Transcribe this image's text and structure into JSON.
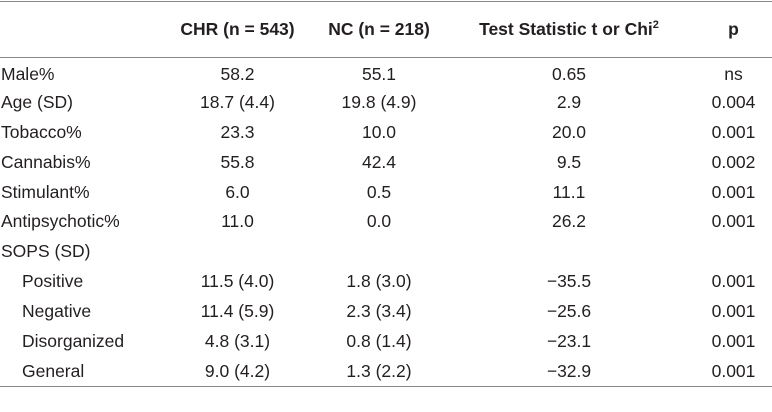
{
  "table": {
    "header": [
      "CHR (n = 543)",
      "NC (n = 218)",
      {
        "text": "Test Statistic t or Chi",
        "superscript": "2"
      },
      "p"
    ],
    "rows": [
      [
        "Male%",
        "58.2",
        "55.1",
        "0.65",
        "ns"
      ],
      [
        "Age (SD)",
        "18.7 (4.4)",
        "19.8 (4.9)",
        "2.9",
        "0.004"
      ],
      [
        "Tobacco%",
        "23.3",
        "10.0",
        "20.0",
        "0.001"
      ],
      [
        "Cannabis%",
        "55.8",
        "42.4",
        "9.5",
        "0.002"
      ],
      [
        "Stimulant%",
        "6.0",
        "0.5",
        "11.1",
        "0.001"
      ],
      [
        "Antipsychotic%",
        "11.0",
        "0.0",
        "26.2",
        "0.001"
      ]
    ],
    "group": {
      "label": "SOPS (SD)",
      "rows": [
        [
          "Positive",
          "11.5 (4.0)",
          "1.8 (3.0)",
          "−35.5",
          "0.001"
        ],
        [
          "Negative",
          "11.4 (5.9)",
          "2.3 (3.4)",
          "−25.6",
          "0.001"
        ],
        [
          "Disorganized",
          "4.8 (3.1)",
          "0.8 (1.4)",
          "−23.1",
          "0.001"
        ],
        [
          "General",
          "9.0 (4.2)",
          "1.3 (2.2)",
          "−32.9",
          "0.001"
        ]
      ]
    }
  }
}
